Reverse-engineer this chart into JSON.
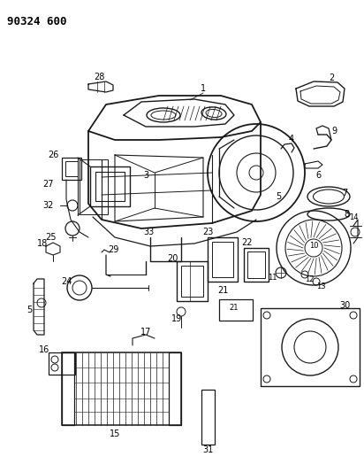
{
  "title": "90324 600",
  "bg": "#ffffff",
  "lc": "#1a1a1a",
  "tc": "#000000",
  "figsize": [
    4.12,
    5.33
  ],
  "dpi": 100
}
